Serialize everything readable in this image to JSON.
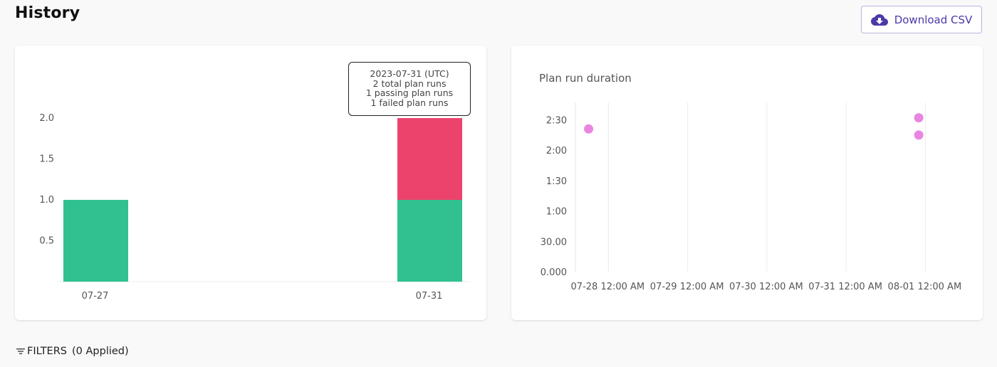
{
  "header": {
    "title": "History",
    "download_label": "Download CSV",
    "download_icon": "cloud-download-icon"
  },
  "colors": {
    "passing": "#31c191",
    "failed": "#ec436d",
    "duration_point": "#e986e1",
    "accent": "#4a3aa8"
  },
  "chart_data": [
    {
      "type": "bar",
      "stacked": true,
      "title": "",
      "categories": [
        "07-27",
        "07-31"
      ],
      "series": [
        {
          "name": "passing plan runs",
          "values": [
            1,
            1
          ]
        },
        {
          "name": "failed plan runs",
          "values": [
            0,
            1
          ]
        }
      ],
      "ylim": [
        0,
        2
      ],
      "yticks": [
        "0.5",
        "1.0",
        "1.5",
        "2.0"
      ],
      "grid": false
    },
    {
      "type": "scatter",
      "title": "Plan run duration",
      "xticks": [
        "07-28 12:00 AM",
        "07-29 12:00 AM",
        "07-30 12:00 AM",
        "07-31 12:00 AM",
        "08-01 12:00 AM"
      ],
      "yticks": [
        "0.000",
        "30.00",
        "1:00",
        "1:30",
        "2:00",
        "2:30"
      ],
      "x_range": [
        "2023-07-27 14:00",
        "2023-08-01 12:00"
      ],
      "y_range_seconds": [
        0,
        165
      ],
      "points": [
        {
          "x": "2023-07-27 18:00",
          "y_seconds": 141
        },
        {
          "x": "2023-07-31 22:00",
          "y_seconds": 152
        },
        {
          "x": "2023-07-31 22:00",
          "y_seconds": 135
        }
      ],
      "grid": "vertical"
    }
  ],
  "tooltip": {
    "date": "2023-07-31 (UTC)",
    "total": "2 total plan runs",
    "passing": "1 passing plan runs",
    "failed": "1 failed plan runs"
  },
  "filters": {
    "label": "FILTERS",
    "applied": "(0 Applied)",
    "icon": "filter-icon"
  }
}
